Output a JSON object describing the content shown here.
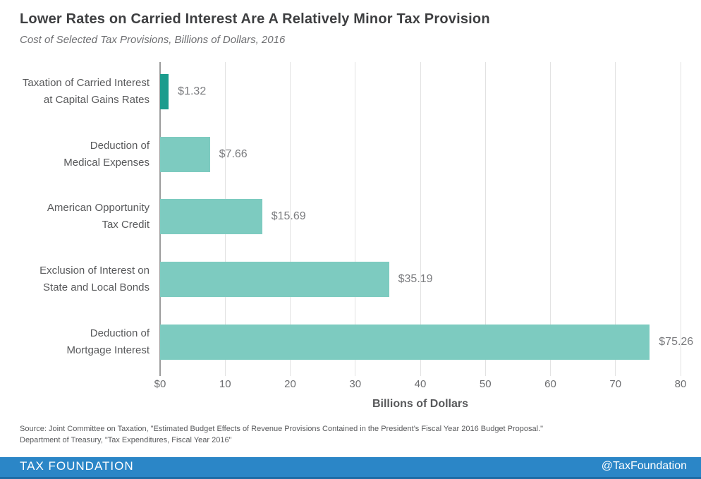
{
  "header": {
    "title": "Lower Rates on Carried Interest Are A Relatively Minor Tax Provision",
    "subtitle": "Cost of Selected Tax Provisions, Billions of Dollars, 2016"
  },
  "chart_data": {
    "type": "bar",
    "orientation": "horizontal",
    "title": "Lower Rates on Carried Interest Are A Relatively Minor Tax Provision",
    "subtitle": "Cost of Selected Tax Provisions, Billions of Dollars, 2016",
    "categories": [
      "Taxation of Carried Interest at Capital Gains Rates",
      "Deduction of Medical Expenses",
      "American Opportunity Tax Credit",
      "Exclusion of Interest on State and Local Bonds",
      "Deduction of Mortgage Interest"
    ],
    "category_lines": [
      "Taxation of Carried Interest\nat Capital Gains Rates",
      "Deduction of\nMedical Expenses",
      "American Opportunity\nTax Credit",
      "Exclusion of Interest on\nState and Local Bonds",
      "Deduction of\nMortgage Interest"
    ],
    "values": [
      1.32,
      7.66,
      15.69,
      35.19,
      75.26
    ],
    "value_labels": [
      "$1.32",
      "$7.66",
      "$15.69",
      "$35.19",
      "$75.26"
    ],
    "xlabel": "Billions of Dollars",
    "xlim": [
      0,
      80
    ],
    "x_ticks": [
      {
        "value": 0,
        "label": "$0"
      },
      {
        "value": 10,
        "label": "10"
      },
      {
        "value": 20,
        "label": "20"
      },
      {
        "value": 30,
        "label": "30"
      },
      {
        "value": 40,
        "label": "40"
      },
      {
        "value": 50,
        "label": "50"
      },
      {
        "value": 60,
        "label": "60"
      },
      {
        "value": 70,
        "label": "70"
      },
      {
        "value": 80,
        "label": "80"
      }
    ],
    "grid": "vertical",
    "legend": "none",
    "highlight_index": 0,
    "bar_colors": {
      "highlight": "#1b9c8d",
      "default": "#7dcbc0"
    }
  },
  "colors": {
    "axis": "#9c9c9c",
    "gridline": "#e2e2e2",
    "title": "#3e3f41",
    "subtitle": "#6d6e71",
    "category_label": "#58595b",
    "value_label": "#7b7c7f",
    "tick_label": "#6d6e71",
    "footer_background": "#2b86c7",
    "footer_border_bottom": "#1d6ba5",
    "footer_text": "#ffffff"
  },
  "source": {
    "line1": "Source: Joint Committee on Taxation, \"Estimated Budget Effects of Revenue Provisions Contained in the President's Fiscal Year 2016 Budget Proposal.\"",
    "line2": "Department of Treasury, \"Tax Expenditures, Fiscal Year 2016\""
  },
  "footer": {
    "brand": "TAX FOUNDATION",
    "handle": "@TaxFoundation"
  }
}
